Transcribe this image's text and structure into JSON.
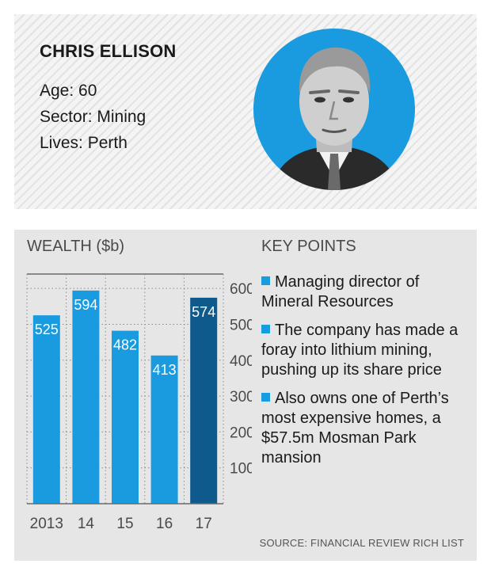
{
  "profile": {
    "name": "CHRIS ELLISON",
    "age": "Age: 60",
    "sector": "Sector: Mining",
    "lives": "Lives: Perth"
  },
  "wealth": {
    "title": "WEALTH ($b)"
  },
  "chart_data": {
    "type": "bar",
    "title": "WEALTH ($b)",
    "xlabel": "",
    "ylabel": "",
    "categories": [
      "2013",
      "14",
      "15",
      "16",
      "17"
    ],
    "values": [
      525,
      594,
      482,
      413,
      574
    ],
    "value_labels": [
      "525",
      "594",
      "482",
      "413",
      "574"
    ],
    "ylim": [
      0,
      640
    ],
    "yticks": [
      100,
      200,
      300,
      400,
      500,
      600
    ],
    "ytick_labels": [
      "100",
      "200",
      "300",
      "400",
      "500",
      "600"
    ],
    "y_axis_side": "right",
    "grid": true,
    "highlight_index": 4,
    "colors": {
      "bar": "#1a9be0",
      "highlight": "#0f5a8c"
    }
  },
  "key_points": {
    "title": "KEY POINTS",
    "items": [
      "Managing director of Mineral Resources",
      "The company has made a foray into lithium mining, pushing up its share price",
      "Also owns one of Perth’s most expensive homes, a $57.5m Mosman Park mansion"
    ]
  },
  "source": "SOURCE: FINANCIAL REVIEW RICH LIST",
  "colors": {
    "accent": "#1a9be0",
    "dark_bar": "#0f5a8c"
  }
}
